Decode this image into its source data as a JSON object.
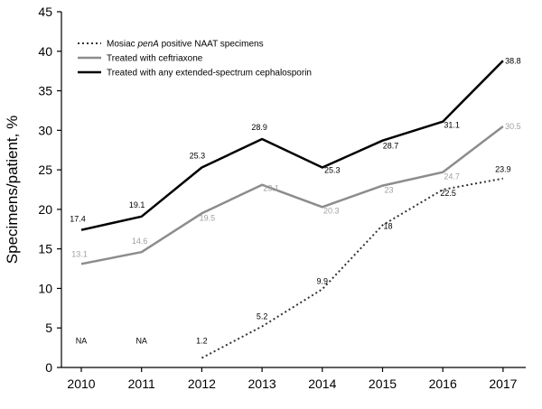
{
  "chart_data": {
    "type": "line",
    "categories": [
      "2010",
      "2011",
      "2012",
      "2013",
      "2014",
      "2015",
      "2016",
      "2017"
    ],
    "ylabel": "Specimens/patient, %",
    "ylim": [
      0,
      45
    ],
    "yticks": [
      "0",
      "5",
      "10",
      "15",
      "20",
      "25",
      "30",
      "35",
      "40",
      "45"
    ],
    "grid": false,
    "legend_position": "top-left",
    "series": [
      {
        "name_prefix": "Mosiac ",
        "name_italic": "penA",
        "name_suffix": " positive NAAT specimens",
        "color": "#333333",
        "dashed": true,
        "values": [
          null,
          null,
          1.2,
          5.2,
          9.9,
          18,
          22.5,
          23.9
        ],
        "labels": [
          "NA",
          "NA",
          "1.2",
          "5.2",
          "9.9",
          "18",
          "22.5",
          "23.9"
        ]
      },
      {
        "name": "Treated with ceftriaxone",
        "color": "#8c8c8c",
        "dashed": false,
        "values": [
          13.1,
          14.6,
          19.5,
          23.1,
          20.3,
          23,
          24.7,
          30.5
        ],
        "labels": [
          "13.1",
          "14.6",
          "19.5",
          "23.1",
          "20.3",
          "23",
          "24.7",
          "30.5"
        ]
      },
      {
        "name": "Treated with any extended-spectrum cephalosporin",
        "color": "#000000",
        "dashed": false,
        "values": [
          17.4,
          19.1,
          25.3,
          28.9,
          25.3,
          28.7,
          31.1,
          38.8
        ],
        "labels": [
          "17.4",
          "19.1",
          "25.3",
          "28.9",
          "25.3",
          "28.7",
          "31.1",
          "38.8"
        ]
      }
    ]
  }
}
